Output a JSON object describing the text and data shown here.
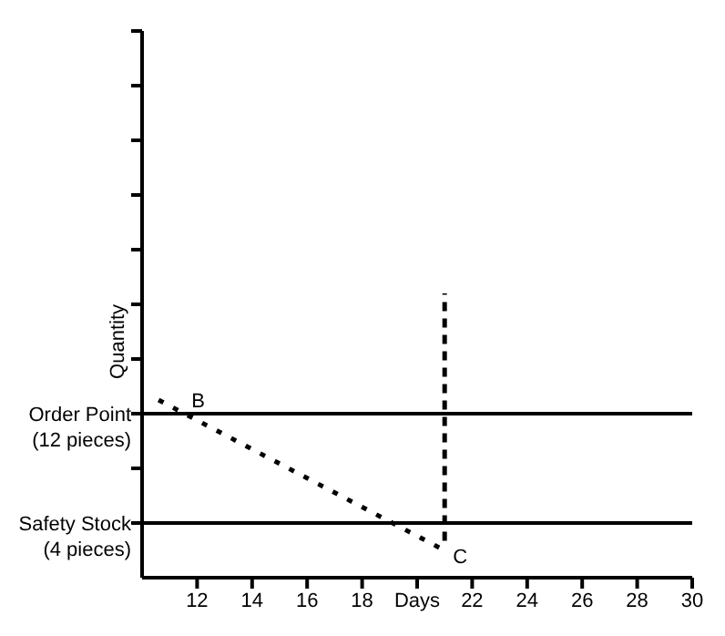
{
  "chart_data": {
    "type": "line",
    "xlabel": "Days",
    "ylabel": "Quantity",
    "xlim": [
      10,
      30
    ],
    "ylim": [
      0,
      40
    ],
    "xticks": [
      12,
      14,
      16,
      18,
      {
        "value": 20,
        "label": null
      },
      22,
      24,
      26,
      28,
      30
    ],
    "yticks": [
      {
        "value": 4,
        "label": null
      },
      {
        "value": 8,
        "label": null
      },
      {
        "value": 12,
        "label": null
      },
      {
        "value": 16,
        "label": null
      },
      {
        "value": 20,
        "label": null
      },
      {
        "value": 24,
        "label": null
      },
      {
        "value": 28,
        "label": null
      },
      {
        "value": 32,
        "label": null
      },
      {
        "value": 36,
        "label": null
      },
      {
        "value": 40,
        "label": null
      }
    ],
    "series": [
      {
        "color": "#000000",
        "x": [
          10.6,
          20.9
        ],
        "values": [
          13.0,
          2.1
        ],
        "line_style": "dotted"
      },
      {
        "color": "#000000",
        "x": [
          21,
          21
        ],
        "values": [
          2.7,
          20.8
        ],
        "line_style": "dashed"
      }
    ],
    "ref_lines": [
      {
        "axis": "y",
        "value": 12,
        "label": "Order Point\n(12 pieces)",
        "color": "#000000"
      },
      {
        "axis": "y",
        "value": 4,
        "label": "Safety Stock\n(4 pieces)",
        "color": "#000000"
      }
    ],
    "annotations": [
      {
        "text": "B",
        "x": 11.4,
        "y": 12.2
      },
      {
        "text": "C",
        "x": 20.9,
        "y": 2.1
      }
    ],
    "grid": false,
    "legend": false,
    "marker": "none"
  }
}
